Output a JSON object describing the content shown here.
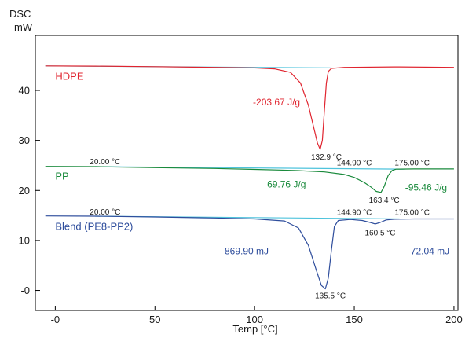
{
  "chart_data": {
    "type": "line",
    "ylabel_line1": "DSC",
    "ylabel_line2": "mW",
    "xlabel": "Temp [°C]",
    "xlim": [
      -10,
      202
    ],
    "ylim": [
      -4,
      51
    ],
    "x_ticks": [
      {
        "v": 0,
        "label": "-0"
      },
      {
        "v": 50,
        "label": "50"
      },
      {
        "v": 100,
        "label": "100"
      },
      {
        "v": 150,
        "label": "150"
      },
      {
        "v": 200,
        "label": "200"
      }
    ],
    "y_ticks": [
      {
        "v": 0,
        "label": "-0"
      },
      {
        "v": 10,
        "label": "10"
      },
      {
        "v": 20,
        "label": "20"
      },
      {
        "v": 30,
        "label": "30"
      },
      {
        "v": 40,
        "label": "40"
      }
    ],
    "baseline_color": "#4ec3dc",
    "series": [
      {
        "name": "HDPE",
        "color": "#e0242f",
        "points": [
          [
            -5,
            44.9
          ],
          [
            20,
            44.85
          ],
          [
            50,
            44.75
          ],
          [
            80,
            44.6
          ],
          [
            100,
            44.5
          ],
          [
            110,
            44.3
          ],
          [
            118,
            43.6
          ],
          [
            123,
            41.5
          ],
          [
            127,
            37
          ],
          [
            130,
            32
          ],
          [
            131.5,
            29.5
          ],
          [
            132.9,
            28.2
          ],
          [
            134,
            30
          ],
          [
            135,
            36
          ],
          [
            136,
            41.5
          ],
          [
            137,
            43.8
          ],
          [
            138.5,
            44.4
          ],
          [
            145,
            44.6
          ],
          [
            170,
            44.7
          ],
          [
            200,
            44.6
          ]
        ],
        "baseline": [
          [
            -5,
            44.9
          ],
          [
            138,
            44.5
          ]
        ]
      },
      {
        "name": "PP",
        "color": "#1a8a3c",
        "points": [
          [
            -5,
            24.8
          ],
          [
            20,
            24.75
          ],
          [
            50,
            24.55
          ],
          [
            80,
            24.4
          ],
          [
            100,
            24.2
          ],
          [
            120,
            24.0
          ],
          [
            135,
            23.7
          ],
          [
            145,
            23.2
          ],
          [
            150,
            22.6
          ],
          [
            155,
            21.6
          ],
          [
            158,
            20.8
          ],
          [
            161,
            19.8
          ],
          [
            163.4,
            19.6
          ],
          [
            165,
            20.8
          ],
          [
            167,
            23.0
          ],
          [
            169,
            24.0
          ],
          [
            171,
            24.25
          ],
          [
            180,
            24.3
          ],
          [
            200,
            24.3
          ]
        ],
        "baseline": [
          [
            20,
            24.75
          ],
          [
            175,
            24.25
          ]
        ]
      },
      {
        "name": "Blend (PE8-PP2)",
        "color": "#2e4d9c",
        "points": [
          [
            -5,
            14.9
          ],
          [
            20,
            14.85
          ],
          [
            50,
            14.7
          ],
          [
            80,
            14.5
          ],
          [
            100,
            14.3
          ],
          [
            115,
            13.9
          ],
          [
            122,
            12.5
          ],
          [
            127,
            9
          ],
          [
            131,
            4
          ],
          [
            133.5,
            1
          ],
          [
            135.5,
            0.3
          ],
          [
            137,
            2.5
          ],
          [
            138.5,
            8
          ],
          [
            140,
            12.8
          ],
          [
            142,
            14.0
          ],
          [
            148,
            14.2
          ],
          [
            154,
            14.0
          ],
          [
            158,
            13.6
          ],
          [
            160.5,
            13.3
          ],
          [
            163,
            13.6
          ],
          [
            166,
            14.1
          ],
          [
            170,
            14.25
          ],
          [
            180,
            14.3
          ],
          [
            200,
            14.3
          ]
        ],
        "baseline": [
          [
            20,
            14.85
          ],
          [
            175,
            14.3
          ]
        ]
      }
    ],
    "series_labels": [
      {
        "text": "HDPE",
        "x": 0,
        "y": 42.1,
        "color": "#e0242f"
      },
      {
        "text": "PP",
        "x": 0,
        "y": 22.2,
        "color": "#1a8a3c"
      },
      {
        "text": "Blend (PE8-PP2)",
        "x": 0,
        "y": 12.1,
        "color": "#2e4d9c"
      }
    ],
    "annotations": [
      {
        "text": "-203.67 J/g",
        "x": 111,
        "y": 37,
        "color": "#e0242f",
        "size": 12,
        "anchor": "middle"
      },
      {
        "text": "132.9 °C",
        "x": 136,
        "y": 26.2,
        "color": "#1a1a1a",
        "size": 10,
        "anchor": "middle"
      },
      {
        "text": "20.00 °C",
        "x": 25,
        "y": 25.2,
        "color": "#1a1a1a",
        "size": 10,
        "anchor": "middle"
      },
      {
        "text": "144.90 °C",
        "x": 150,
        "y": 25.0,
        "color": "#1a1a1a",
        "size": 10,
        "anchor": "middle"
      },
      {
        "text": "175.00 °C",
        "x": 179,
        "y": 25.0,
        "color": "#1a1a1a",
        "size": 10,
        "anchor": "middle"
      },
      {
        "text": "69.76 J/g",
        "x": 116,
        "y": 20.6,
        "color": "#1a8a3c",
        "size": 12,
        "anchor": "middle"
      },
      {
        "text": "-95.46 J/g",
        "x": 186,
        "y": 20.0,
        "color": "#1a8a3c",
        "size": 12,
        "anchor": "middle"
      },
      {
        "text": "163.4 °C",
        "x": 165,
        "y": 17.5,
        "color": "#1a1a1a",
        "size": 10,
        "anchor": "middle"
      },
      {
        "text": "20.00 °C",
        "x": 25,
        "y": 15.2,
        "color": "#1a1a1a",
        "size": 10,
        "anchor": "middle"
      },
      {
        "text": "144.90 °C",
        "x": 150,
        "y": 15.1,
        "color": "#1a1a1a",
        "size": 10,
        "anchor": "middle"
      },
      {
        "text": "175.00 °C",
        "x": 179,
        "y": 15.1,
        "color": "#1a1a1a",
        "size": 10,
        "anchor": "middle"
      },
      {
        "text": "160.5 °C",
        "x": 163,
        "y": 11.0,
        "color": "#1a1a1a",
        "size": 10,
        "anchor": "middle"
      },
      {
        "text": "869.90 mJ",
        "x": 96,
        "y": 7.2,
        "color": "#2e4d9c",
        "size": 12,
        "anchor": "middle"
      },
      {
        "text": "72.04 mJ",
        "x": 188,
        "y": 7.2,
        "color": "#2e4d9c",
        "size": 12,
        "anchor": "middle"
      },
      {
        "text": "135.5 °C",
        "x": 138,
        "y": -1.6,
        "color": "#1a1a1a",
        "size": 10,
        "anchor": "middle"
      }
    ]
  }
}
